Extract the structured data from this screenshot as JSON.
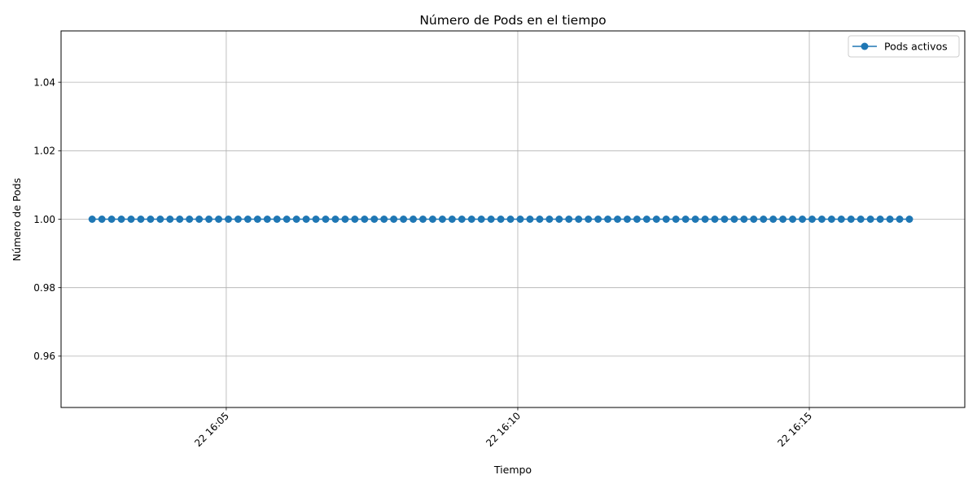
{
  "chart_data": {
    "type": "line",
    "title": "Número de Pods en el tiempo",
    "xlabel": "Tiempo",
    "ylabel": "Número de Pods",
    "x_ticks": [
      {
        "value": "22 16:05",
        "t": "16:05:00"
      },
      {
        "value": "22 16:10",
        "t": "16:10:00"
      },
      {
        "value": "22 16:15",
        "t": "16:15:00"
      }
    ],
    "y_ticks": [
      "0.96",
      "0.98",
      "1.00",
      "1.02",
      "1.04"
    ],
    "xlim": [
      "16:02:10",
      "16:17:40"
    ],
    "ylim": [
      0.945,
      1.055
    ],
    "grid": true,
    "legend_position": "top-right",
    "series": [
      {
        "name": "Pods activos",
        "color": "#1f77b4",
        "marker": "circle",
        "x_start": "16:02:42",
        "x_end": "16:16:43",
        "point_count": 85,
        "value": 1.0
      }
    ]
  }
}
